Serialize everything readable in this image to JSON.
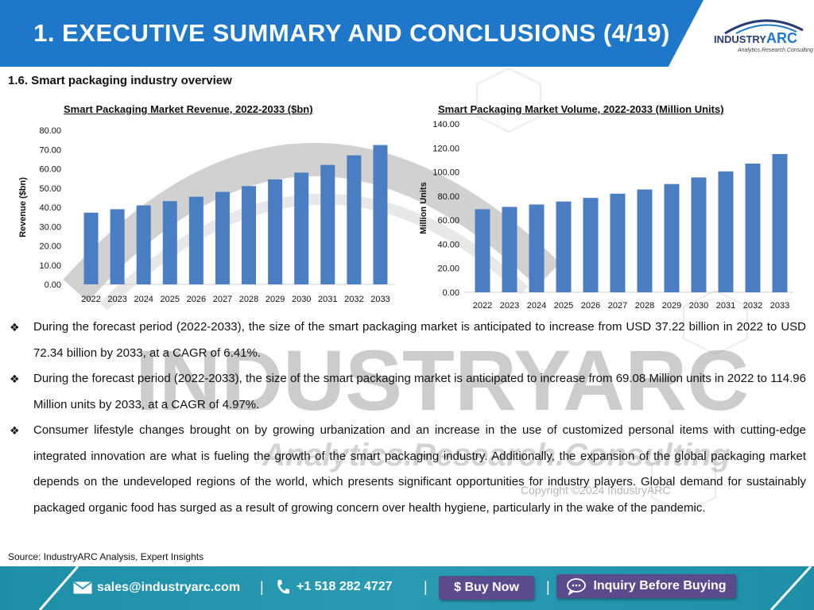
{
  "header": {
    "title": "1. EXECUTIVE SUMMARY AND CONCLUSIONS (4/19)",
    "logo_text_main": "INDUSTRY",
    "logo_text_accent": "ARC",
    "logo_tagline": "Analytics.Research.Consulting"
  },
  "section_title": "1.6. Smart packaging industry overview",
  "watermark": {
    "brand": "INDUSTRYARC",
    "tagline": "Analytics.Research.Consulting",
    "copyright": "Copyright ©2024 IndustryARC"
  },
  "chart_data": [
    {
      "type": "bar",
      "title": "Smart Packaging Market Revenue, 2022-2033 ($bn)",
      "ylabel": "Revenue ($bn)",
      "xlabel": "",
      "categories": [
        "2022",
        "2023",
        "2024",
        "2025",
        "2026",
        "2027",
        "2028",
        "2029",
        "2030",
        "2031",
        "2032",
        "2033"
      ],
      "values": [
        37.22,
        39.0,
        41.0,
        43.2,
        45.5,
        48.0,
        51.0,
        54.5,
        58.0,
        62.0,
        67.0,
        72.34
      ],
      "ylim": [
        0,
        80
      ],
      "yticks": [
        "0.00",
        "10.00",
        "20.00",
        "30.00",
        "40.00",
        "50.00",
        "60.00",
        "70.00",
        "80.00"
      ],
      "bar_color": "#4a7ec2",
      "grid": false,
      "legend": "none"
    },
    {
      "type": "bar",
      "title": "Smart Packaging Market Volume, 2022-2033 (Million Units)",
      "ylabel": "Million Units",
      "xlabel": "",
      "categories": [
        "2022",
        "2023",
        "2024",
        "2025",
        "2026",
        "2027",
        "2028",
        "2029",
        "2030",
        "2031",
        "2032",
        "2033"
      ],
      "values": [
        69.08,
        71.0,
        73.0,
        75.5,
        78.5,
        82.0,
        85.5,
        90.0,
        95.5,
        100.5,
        107.0,
        114.96
      ],
      "ylim": [
        0,
        140
      ],
      "yticks": [
        "0.00",
        "20.00",
        "40.00",
        "60.00",
        "80.00",
        "100.00",
        "120.00",
        "140.00"
      ],
      "bar_color": "#4a7ec2",
      "grid": false,
      "legend": "none"
    }
  ],
  "bullets": [
    "During the forecast period (2022-2033), the size of the smart packaging market is anticipated to increase from USD 37.22 billion in 2022 to USD 72.34 billion by 2033, at a CAGR of 6.41%.",
    "During the forecast period (2022-2033), the size of the smart packaging market is anticipated to increase from 69.08 Million units in 2022 to 114.96 Million units by 2033, at a CAGR of 4.97%.",
    "Consumer lifestyle changes brought on by growing urbanization and an increase in the use of customized personal items with cutting-edge integrated innovation are what is fueling the growth of the smart packaging industry. Additionally, the expansion of the global packaging market depends on the undeveloped regions of the world, which presents significant opportunities for industry players. Global demand for sustainably packaged organic food has surged as a result of growing concern over health hygiene, particularly in the wake of the pandemic."
  ],
  "bullet_glyph": "❖",
  "source": "Source: IndustryARC Analysis, Expert Insights",
  "footer": {
    "email": "sales@industryarc.com",
    "phone": "+1 518 282 4727",
    "separator": "|",
    "buy_label": "$ Buy Now",
    "inquiry_label": "Inquiry Before Buying",
    "email_icon": "envelope-icon",
    "phone_icon": "phone-icon",
    "inquiry_icon": "chat-bubble-icon"
  },
  "colors": {
    "header_blue": "#1f77c9",
    "bar_blue": "#4a7ec2",
    "footer_teal": "#2a9bb3",
    "button_purple": "#5b4a8c"
  }
}
